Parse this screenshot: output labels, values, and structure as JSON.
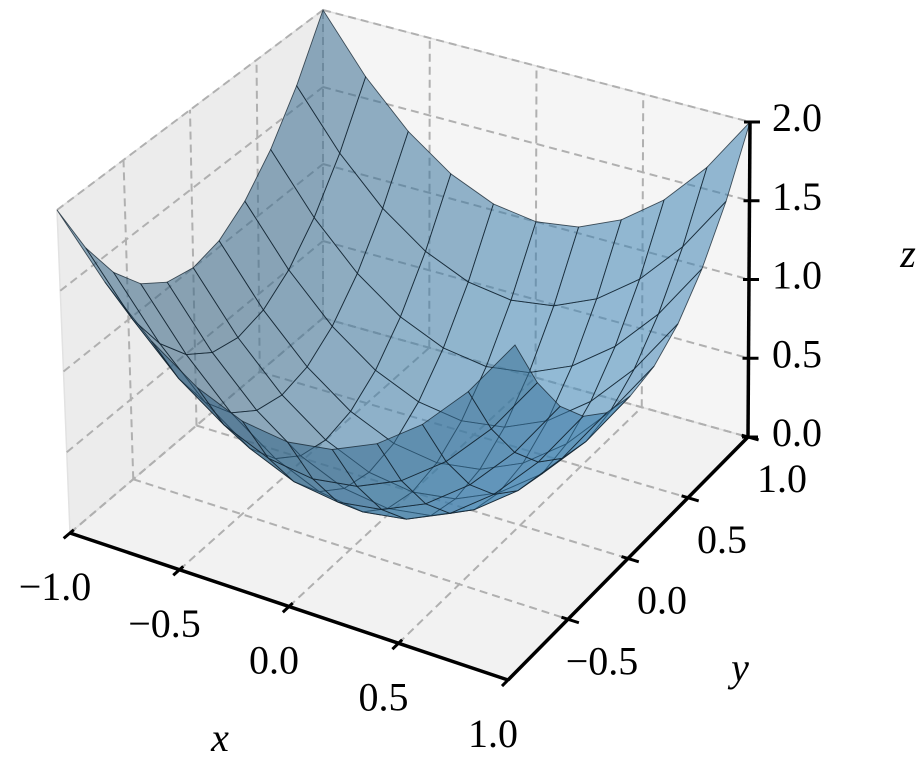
{
  "chart_data": {
    "type": "surface",
    "x": [
      -1,
      -0.8,
      -0.6,
      -0.4,
      -0.2,
      0,
      0.2,
      0.4,
      0.6,
      0.8,
      1
    ],
    "y": [
      -1,
      -0.8,
      -0.6,
      -0.4,
      -0.2,
      0,
      0.2,
      0.4,
      0.6,
      0.8,
      1
    ],
    "z": [
      [
        2,
        1.64,
        1.36,
        1.16,
        1.04,
        1,
        1.04,
        1.16,
        1.36,
        1.64,
        2
      ],
      [
        1.64,
        1.28,
        1,
        0.8,
        0.68,
        0.64,
        0.68,
        0.8,
        1,
        1.28,
        1.64
      ],
      [
        1.36,
        1,
        0.72,
        0.52,
        0.4,
        0.36,
        0.4,
        0.52,
        0.72,
        1,
        1.36
      ],
      [
        1.16,
        0.8,
        0.52,
        0.32,
        0.2,
        0.16,
        0.2,
        0.32,
        0.52,
        0.8,
        1.16
      ],
      [
        1.04,
        0.68,
        0.4,
        0.2,
        0.08,
        0.04,
        0.08,
        0.2,
        0.4,
        0.68,
        1.04
      ],
      [
        1,
        0.64,
        0.36,
        0.16,
        0.04,
        0,
        0.04,
        0.16,
        0.36,
        0.64,
        1
      ],
      [
        1.04,
        0.68,
        0.4,
        0.2,
        0.08,
        0.04,
        0.08,
        0.2,
        0.4,
        0.68,
        1.04
      ],
      [
        1.16,
        0.8,
        0.52,
        0.32,
        0.2,
        0.16,
        0.2,
        0.32,
        0.52,
        0.8,
        1.16
      ],
      [
        1.36,
        1,
        0.72,
        0.52,
        0.4,
        0.36,
        0.4,
        0.52,
        0.72,
        1,
        1.36
      ],
      [
        1.64,
        1.28,
        1,
        0.8,
        0.68,
        0.64,
        0.68,
        0.8,
        1,
        1.28,
        1.64
      ],
      [
        2,
        1.64,
        1.36,
        1.16,
        1.04,
        1,
        1.04,
        1.16,
        1.36,
        1.64,
        2
      ]
    ],
    "color": "#1f77b4",
    "xlim": [
      -1,
      1
    ],
    "ylim": [
      -1,
      1
    ],
    "zlim": [
      0,
      2
    ],
    "xticks": [
      {
        "value": -1,
        "label": "−1.0"
      },
      {
        "value": -0.5,
        "label": "−0.5"
      },
      {
        "value": 0,
        "label": "0.0"
      },
      {
        "value": 0.5,
        "label": "0.5"
      },
      {
        "value": 1,
        "label": "1.0"
      }
    ],
    "yticks": [
      {
        "value": -0.5,
        "label": "−0.5"
      },
      {
        "value": 0,
        "label": "0.0"
      },
      {
        "value": 0.5,
        "label": "0.5"
      },
      {
        "value": 1,
        "label": "1.0"
      }
    ],
    "zticks": [
      {
        "value": 0,
        "label": "0.0"
      },
      {
        "value": 0.5,
        "label": "0.5"
      },
      {
        "value": 1,
        "label": "1.0"
      },
      {
        "value": 1.5,
        "label": "1.5"
      },
      {
        "value": 2,
        "label": "2.0"
      }
    ],
    "xlabel": "x",
    "ylabel": "y",
    "zlabel": "z",
    "grid": true
  }
}
